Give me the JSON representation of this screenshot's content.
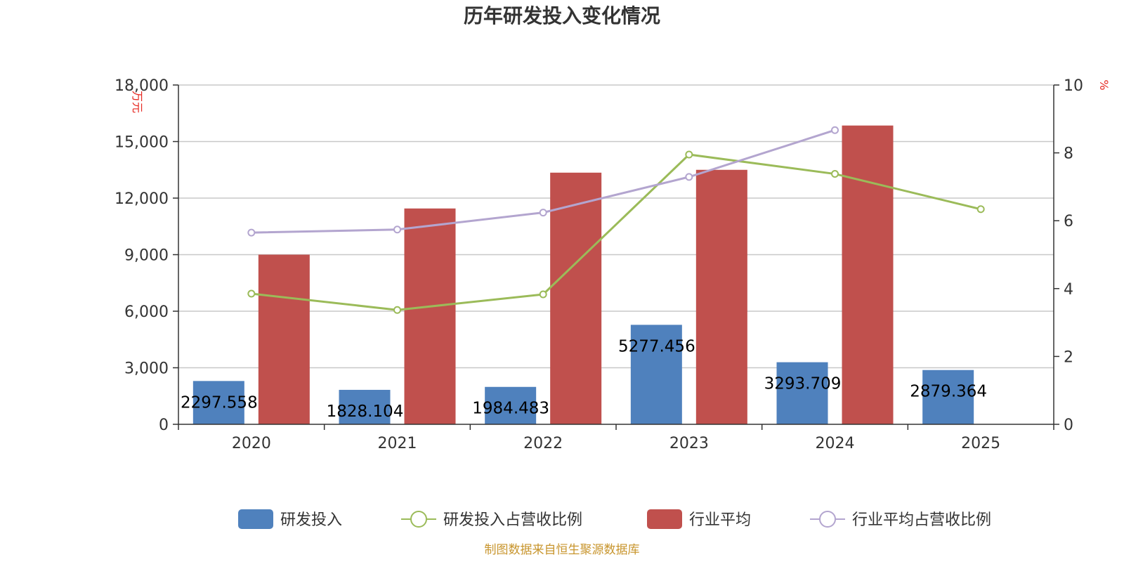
{
  "chart_data": {
    "type": "bar",
    "title": "历年研发投入变化情况",
    "categories": [
      "2020",
      "2021",
      "2022",
      "2023",
      "2024",
      "2025"
    ],
    "y_left": {
      "unit": "万元",
      "range": [
        0,
        18000
      ],
      "ticks": [
        0,
        3000,
        6000,
        9000,
        12000,
        15000,
        18000
      ],
      "tick_labels": [
        "0",
        "3,000",
        "6,000",
        "9,000",
        "12,000",
        "15,000",
        "18,000"
      ]
    },
    "y_right": {
      "unit": "%",
      "range": [
        0,
        10
      ],
      "ticks": [
        0,
        2,
        4,
        6,
        8,
        10
      ],
      "tick_labels": [
        "0",
        "2",
        "4",
        "6",
        "8",
        "10"
      ]
    },
    "grid": true,
    "legend_position": "bottom",
    "series": [
      {
        "name": "研发投入",
        "kind": "bar",
        "axis": "left",
        "color": "#4f81bd",
        "values": [
          2297.558,
          1828.104,
          1984.483,
          5277.456,
          3293.709,
          2879.364
        ],
        "labels": [
          "2297.558",
          "1828.104",
          "1984.483",
          "5277.456",
          "3293.709",
          "2879.364"
        ]
      },
      {
        "name": "研发投入占营收比例",
        "kind": "line",
        "axis": "right",
        "color": "#9bbb59",
        "values": [
          3.85,
          3.37,
          3.83,
          7.95,
          7.38,
          6.34
        ]
      },
      {
        "name": "行业平均",
        "kind": "bar",
        "axis": "left",
        "color": "#c0504d",
        "values": [
          9000,
          11450,
          13350,
          13500,
          15850,
          null
        ]
      },
      {
        "name": "行业平均占营收比例",
        "kind": "line",
        "axis": "right",
        "color": "#b3a5cf",
        "values": [
          5.65,
          5.74,
          6.24,
          7.29,
          8.67,
          null
        ]
      }
    ]
  },
  "footer": {
    "source": "制图数据来自恒生聚源数据库"
  }
}
